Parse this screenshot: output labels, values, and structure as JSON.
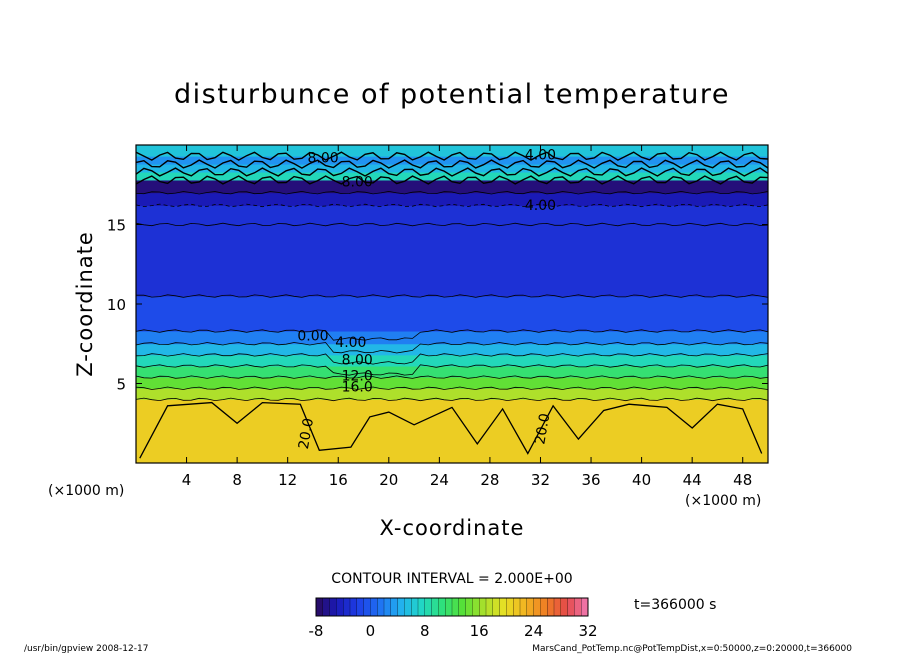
{
  "chart_data": {
    "type": "heatmap",
    "title": "disturbunce of potential temperature",
    "xlabel": "X-coordinate",
    "ylabel": "Z-coordinate",
    "x_unit": "(×1000 m)",
    "y_unit": "(×1000 m)",
    "xlim": [
      0,
      50
    ],
    "ylim": [
      0,
      20
    ],
    "x_ticks": [
      4,
      8,
      12,
      16,
      20,
      24,
      28,
      32,
      36,
      40,
      44,
      48
    ],
    "y_ticks": [
      5,
      10,
      15
    ],
    "contour_interval_text": "CONTOUR INTERVAL = 2.000E+00",
    "time_text": "t=366000 s",
    "colorbar": {
      "min": -8,
      "max": 32,
      "ticks": [
        -8,
        0,
        8,
        16,
        24,
        32
      ],
      "colors": [
        "#2a0a5c",
        "#1a1ab8",
        "#1e3ee6",
        "#1f6ff2",
        "#22aef0",
        "#20d6c8",
        "#2ee07e",
        "#55e038",
        "#a6e02c",
        "#e7e024",
        "#f2b422",
        "#ef7d24",
        "#e54a4a",
        "#f07ab4"
      ]
    },
    "contour_labels": [
      {
        "text": "8.00",
        "x": 14.8,
        "z": 18.9
      },
      {
        "text": "4.00",
        "x": 32.0,
        "z": 19.1
      },
      {
        "text": "8.00",
        "x": 17.5,
        "z": 17.4
      },
      {
        "text": "4.00",
        "x": 32.0,
        "z": 15.9
      },
      {
        "text": "0.00",
        "x": 14.0,
        "z": 7.7
      },
      {
        "text": "4.00",
        "x": 17.0,
        "z": 7.3
      },
      {
        "text": "8.00",
        "x": 17.5,
        "z": 6.2
      },
      {
        "text": "12.0",
        "x": 17.5,
        "z": 5.2
      },
      {
        "text": "16.0",
        "x": 17.5,
        "z": 4.5
      },
      {
        "text": "20.0",
        "x": 13.8,
        "z": 1.8
      },
      {
        "text": "20.0",
        "x": 32.5,
        "z": 2.1
      }
    ],
    "field_bands": [
      {
        "z0": 0.0,
        "z1": 4.0,
        "value": 21
      },
      {
        "z0": 4.0,
        "z1": 4.7,
        "value": 17
      },
      {
        "z0": 4.7,
        "z1": 5.4,
        "value": 14
      },
      {
        "z0": 5.4,
        "z1": 6.1,
        "value": 11
      },
      {
        "z0": 6.1,
        "z1": 6.8,
        "value": 8
      },
      {
        "z0": 6.8,
        "z1": 7.5,
        "value": 5
      },
      {
        "z0": 7.5,
        "z1": 8.3,
        "value": 2
      },
      {
        "z0": 8.3,
        "z1": 10.5,
        "value": -1
      },
      {
        "z0": 10.5,
        "z1": 15.0,
        "value": -3
      },
      {
        "z0": 15.0,
        "z1": 16.2,
        "value": -3
      },
      {
        "z0": 16.2,
        "z1": 17.0,
        "value": -5
      },
      {
        "z0": 17.0,
        "z1": 17.8,
        "value": -7
      },
      {
        "z0": 17.8,
        "z1": 18.3,
        "value": 8
      },
      {
        "z0": 18.3,
        "z1": 18.8,
        "value": 5
      },
      {
        "z0": 18.8,
        "z1": 19.3,
        "value": 3
      },
      {
        "z0": 19.3,
        "z1": 20.0,
        "value": 6
      }
    ]
  },
  "footer_left": "/usr/bin/gpview   2008-12-17",
  "footer_right": "MarsCand_PotTemp.nc@PotTempDist,x=0:50000,z=0:20000,t=366000"
}
